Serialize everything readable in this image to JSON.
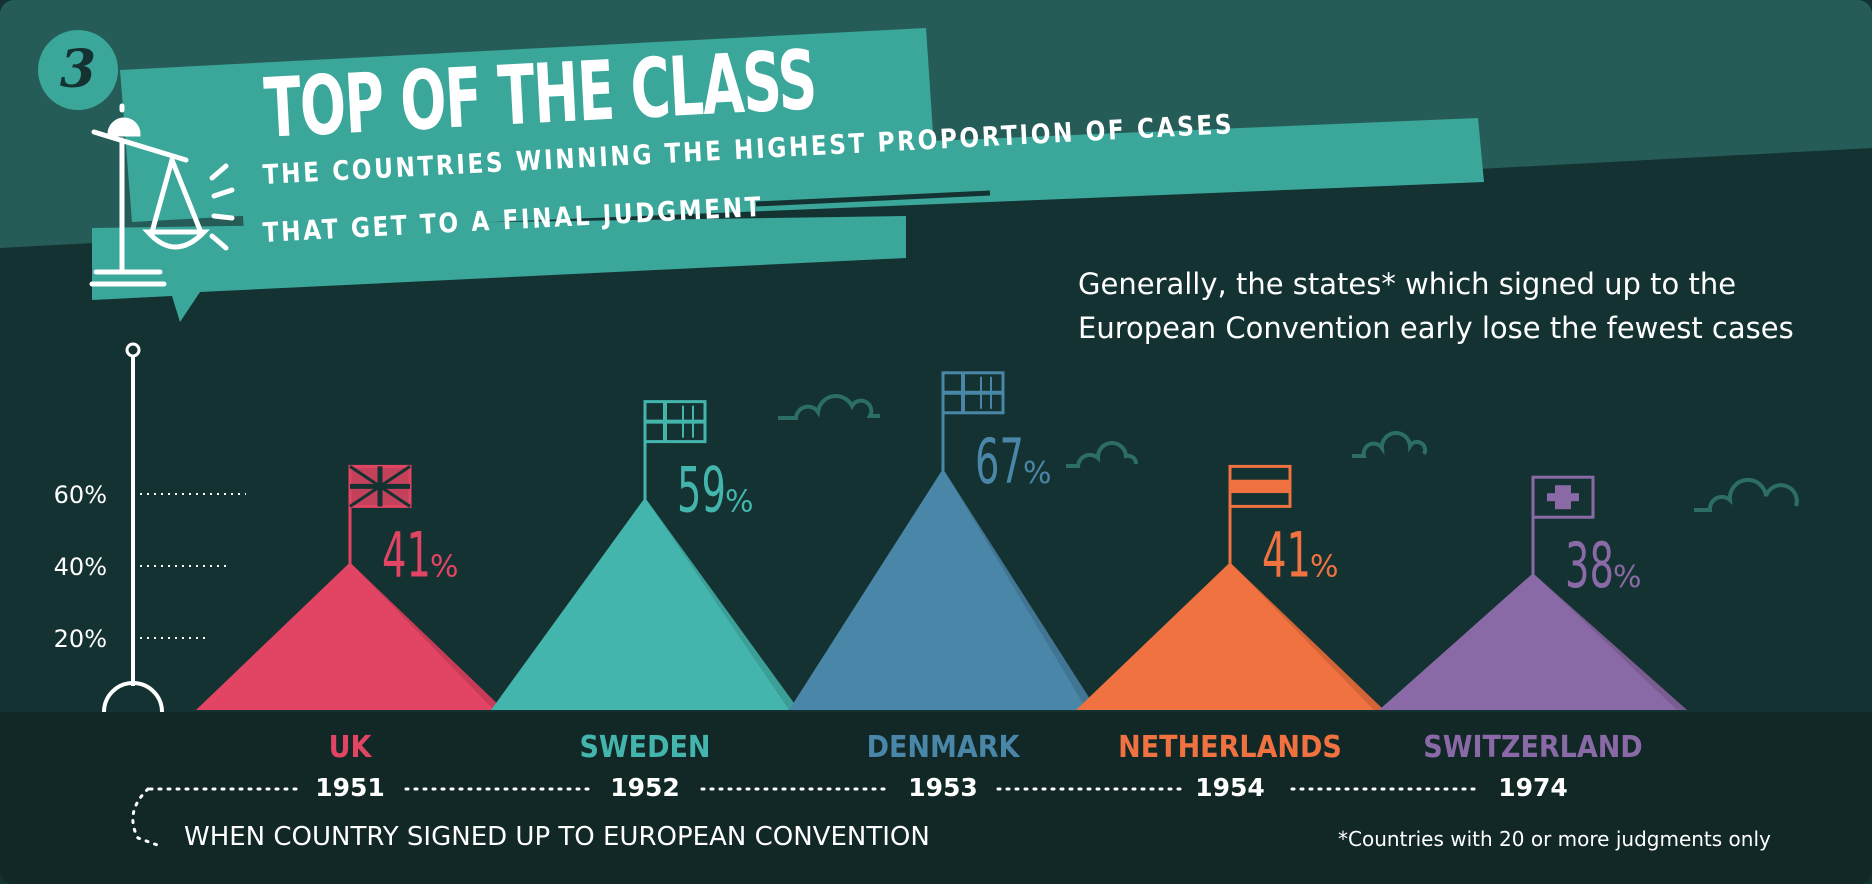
{
  "section_number": "3",
  "title": "TOP OF THE CLASS",
  "subtitle_line1": "THE COUNTRIES WINNING THE HIGHEST PROPORTION OF CASES",
  "subtitle_line2": "THAT GET TO A FINAL JUDGMENT",
  "annotation": "Generally, the states* which signed up to the European Convention early lose the fewest cases",
  "footnote": "*Countries with 20 or more judgments only",
  "icons": [
    "scales-of-justice-icon",
    "cloud-icon",
    "flag-icon"
  ],
  "colors": {
    "background": "#143231",
    "banner": "#3aa79a",
    "uk": "#e24463",
    "sweden": "#44b5ad",
    "denmark": "#4a86a8",
    "netherlands": "#ef7240",
    "switzerland": "#8a6aa6"
  },
  "chart_data": {
    "type": "bar",
    "title": "TOP OF THE CLASS",
    "ylim": [
      0,
      60
    ],
    "yticks": [
      "20%",
      "40%",
      "60%"
    ],
    "x_caption": "WHEN COUNTRY SIGNED UP TO EUROPEAN CONVENTION",
    "series": [
      {
        "values": [
          41,
          59,
          67,
          41,
          38
        ],
        "labels": [
          "41",
          "59",
          "67",
          "41",
          "38"
        ]
      }
    ],
    "categories": [
      "UK",
      "SWEDEN",
      "DENMARK",
      "NETHERLANDS",
      "SWITZERLAND"
    ],
    "years": [
      "1951",
      "1952",
      "1953",
      "1954",
      "1974"
    ],
    "percent_sign": "%",
    "bar_colors": [
      "#e24463",
      "#44b5ad",
      "#4a86a8",
      "#ef7240",
      "#8a6aa6"
    ],
    "flags": [
      "uk",
      "sweden",
      "denmark",
      "netherlands",
      "switzerland"
    ]
  }
}
